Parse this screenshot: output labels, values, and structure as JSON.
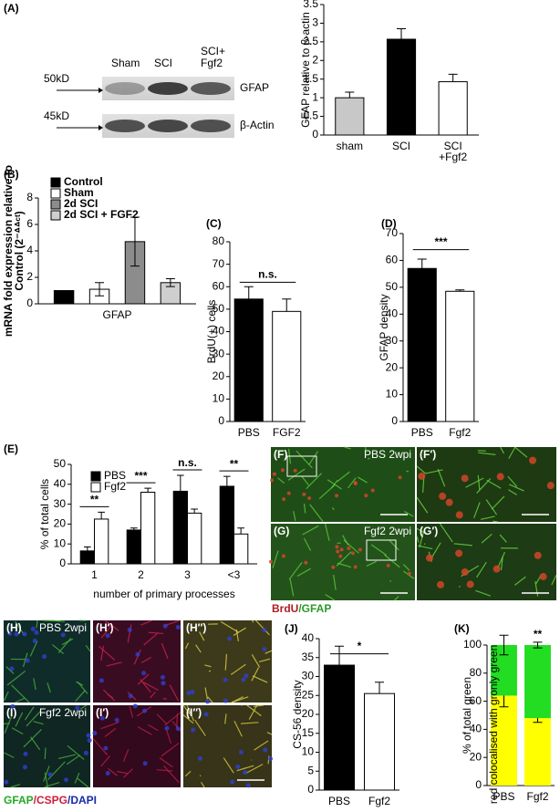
{
  "blot": {
    "panel": "(A)",
    "lanes": [
      [
        "Sham"
      ],
      [
        "SCI"
      ],
      [
        "SCI+",
        "Fgf2"
      ]
    ],
    "proteins": [
      "GFAP",
      "β-Actin"
    ],
    "markers": [
      "50kD",
      "45kD"
    ]
  },
  "chart_data": [
    {
      "type": "bar",
      "ylabel": "GFAP relative to β-actin",
      "categories": [
        [
          "sham"
        ],
        [
          "SCI"
        ],
        [
          "SCI",
          "+Fgf2"
        ]
      ],
      "series": [
        {
          "colors": [
            "#c8c8c8",
            "#000000",
            "#ffffff"
          ],
          "values": [
            1.0,
            2.57,
            1.43
          ],
          "errors": [
            0.15,
            0.28,
            0.2
          ]
        }
      ],
      "ylim": [
        0,
        3.5
      ],
      "yticks": [
        0,
        0.5,
        1,
        1.5,
        2,
        2.5,
        3,
        3.5
      ],
      "error_bars": "up"
    },
    {
      "type": "bar",
      "panel": "(B)",
      "ylabel": [
        "mRNA fold expression relative to",
        "Control (2⁻ᐞᐞᶜᵗ)"
      ],
      "categories": [
        [
          "GFAP"
        ]
      ],
      "series": [
        {
          "name": "Control",
          "color": "#000000",
          "values": [
            1.0
          ]
        },
        {
          "name": "Sham",
          "color": "#ffffff",
          "values": [
            1.1
          ],
          "errors": [
            0.5
          ]
        },
        {
          "name": "2d SCI",
          "color": "#8c8c8c",
          "values": [
            4.7
          ],
          "errors": [
            1.85
          ]
        },
        {
          "name": "2d SCI + FGF2",
          "color": "#cfcfcf",
          "values": [
            1.6
          ],
          "errors": [
            0.3
          ]
        }
      ],
      "ylim": [
        0,
        8
      ],
      "yticks": [
        0,
        2,
        4,
        6,
        8
      ],
      "error_bars": "both"
    },
    {
      "type": "bar",
      "panel": "(C)",
      "ylabel": "BrdU(+) cells",
      "categories": [
        [
          "PBS"
        ],
        [
          "FGF2"
        ]
      ],
      "series": [
        {
          "colors": [
            "#000000",
            "#ffffff"
          ],
          "values": [
            54.5,
            49
          ],
          "errors": [
            5.5,
            5.5
          ]
        }
      ],
      "ylim": [
        0,
        80
      ],
      "yticks": [
        0,
        10,
        20,
        30,
        40,
        50,
        60,
        70,
        80
      ],
      "annotations": [
        "n.s."
      ],
      "error_bars": "up"
    },
    {
      "type": "bar",
      "panel": "(D)",
      "ylabel": "GFAP density",
      "categories": [
        [
          "PBS"
        ],
        [
          "Fgf2"
        ]
      ],
      "series": [
        {
          "colors": [
            "#000000",
            "#ffffff"
          ],
          "values": [
            57,
            48.5
          ],
          "errors": [
            3.5,
            0.5
          ]
        }
      ],
      "ylim": [
        0,
        70
      ],
      "yticks": [
        0,
        10,
        20,
        30,
        40,
        50,
        60,
        70
      ],
      "annotations": [
        "***"
      ],
      "error_bars": "up"
    },
    {
      "type": "bar",
      "panel": "(E)",
      "ylabel": "% of total cells",
      "xlabel": "number of primary processes",
      "categories": [
        [
          "1"
        ],
        [
          "2"
        ],
        [
          "3"
        ],
        [
          "<3"
        ]
      ],
      "series": [
        {
          "name": "PBS",
          "color": "#000000",
          "values": [
            6.5,
            17,
            36.5,
            39
          ],
          "errors": [
            2,
            1,
            8,
            5
          ]
        },
        {
          "name": "Fgf2",
          "color": "#ffffff",
          "values": [
            22.5,
            36,
            25.5,
            15
          ],
          "errors": [
            3.5,
            2,
            2,
            3
          ]
        }
      ],
      "ylim": [
        0,
        50
      ],
      "yticks": [
        0,
        10,
        20,
        30,
        40,
        50
      ],
      "annotations": [
        "**",
        "***",
        "n.s.",
        "**"
      ],
      "error_bars": "up"
    },
    {
      "type": "bar",
      "panel": "(J)",
      "ylabel": "CS-56 density",
      "categories": [
        [
          "PBS"
        ],
        [
          "Fgf2"
        ]
      ],
      "series": [
        {
          "colors": [
            "#000000",
            "#ffffff"
          ],
          "values": [
            33,
            25.5
          ],
          "errors": [
            5,
            3
          ]
        }
      ],
      "ylim": [
        0,
        40
      ],
      "yticks": [
        0,
        5,
        10,
        15,
        20,
        25,
        30,
        35,
        40
      ],
      "annotations": [
        "*"
      ],
      "error_bars": "up"
    },
    {
      "type": "stacked_bar",
      "panel": "(K)",
      "ylabel": "% of total green",
      "categories": [
        [
          "PBS"
        ],
        [
          "Fgf2"
        ]
      ],
      "series": [
        {
          "name": "red colocalised with green",
          "color": "#ffff00",
          "values": [
            64,
            48
          ],
          "errors": [
            8,
            3
          ]
        },
        {
          "name": "only green",
          "color": "#22dd22",
          "values": [
            36,
            52
          ],
          "errors": [
            7,
            2
          ]
        }
      ],
      "ylim": [
        0,
        100
      ],
      "yticks": [
        0,
        20,
        40,
        60,
        80,
        100
      ],
      "annotations": [
        "**"
      ],
      "error_bars": "both"
    }
  ],
  "images": {
    "panels": [
      {
        "label": "(F)",
        "caption": "PBS 2wpi"
      },
      {
        "label": "(F′)"
      },
      {
        "label": "(G)",
        "caption": "Fgf2 2wpi"
      },
      {
        "label": "(G′)"
      },
      {
        "label": "(H)",
        "caption": "PBS 2wpi"
      },
      {
        "label": "(H′)"
      },
      {
        "label": "(H′′)"
      },
      {
        "label": "(I)",
        "caption": "Fgf2 2wpi"
      },
      {
        "label": "(I′)"
      },
      {
        "label": "(I′′)"
      }
    ],
    "stain_fg": [
      {
        "text": "BrdU",
        "color": "#b01c24"
      },
      {
        "text": "/GFAP",
        "color": "#2a9a2a"
      }
    ],
    "stain_hi": [
      {
        "text": "GFAP",
        "color": "#22aa22"
      },
      {
        "text": "/CSPG",
        "color": "#cc1f3a"
      },
      {
        "text": "/DAPI",
        "color": "#1a2aa8"
      }
    ]
  }
}
